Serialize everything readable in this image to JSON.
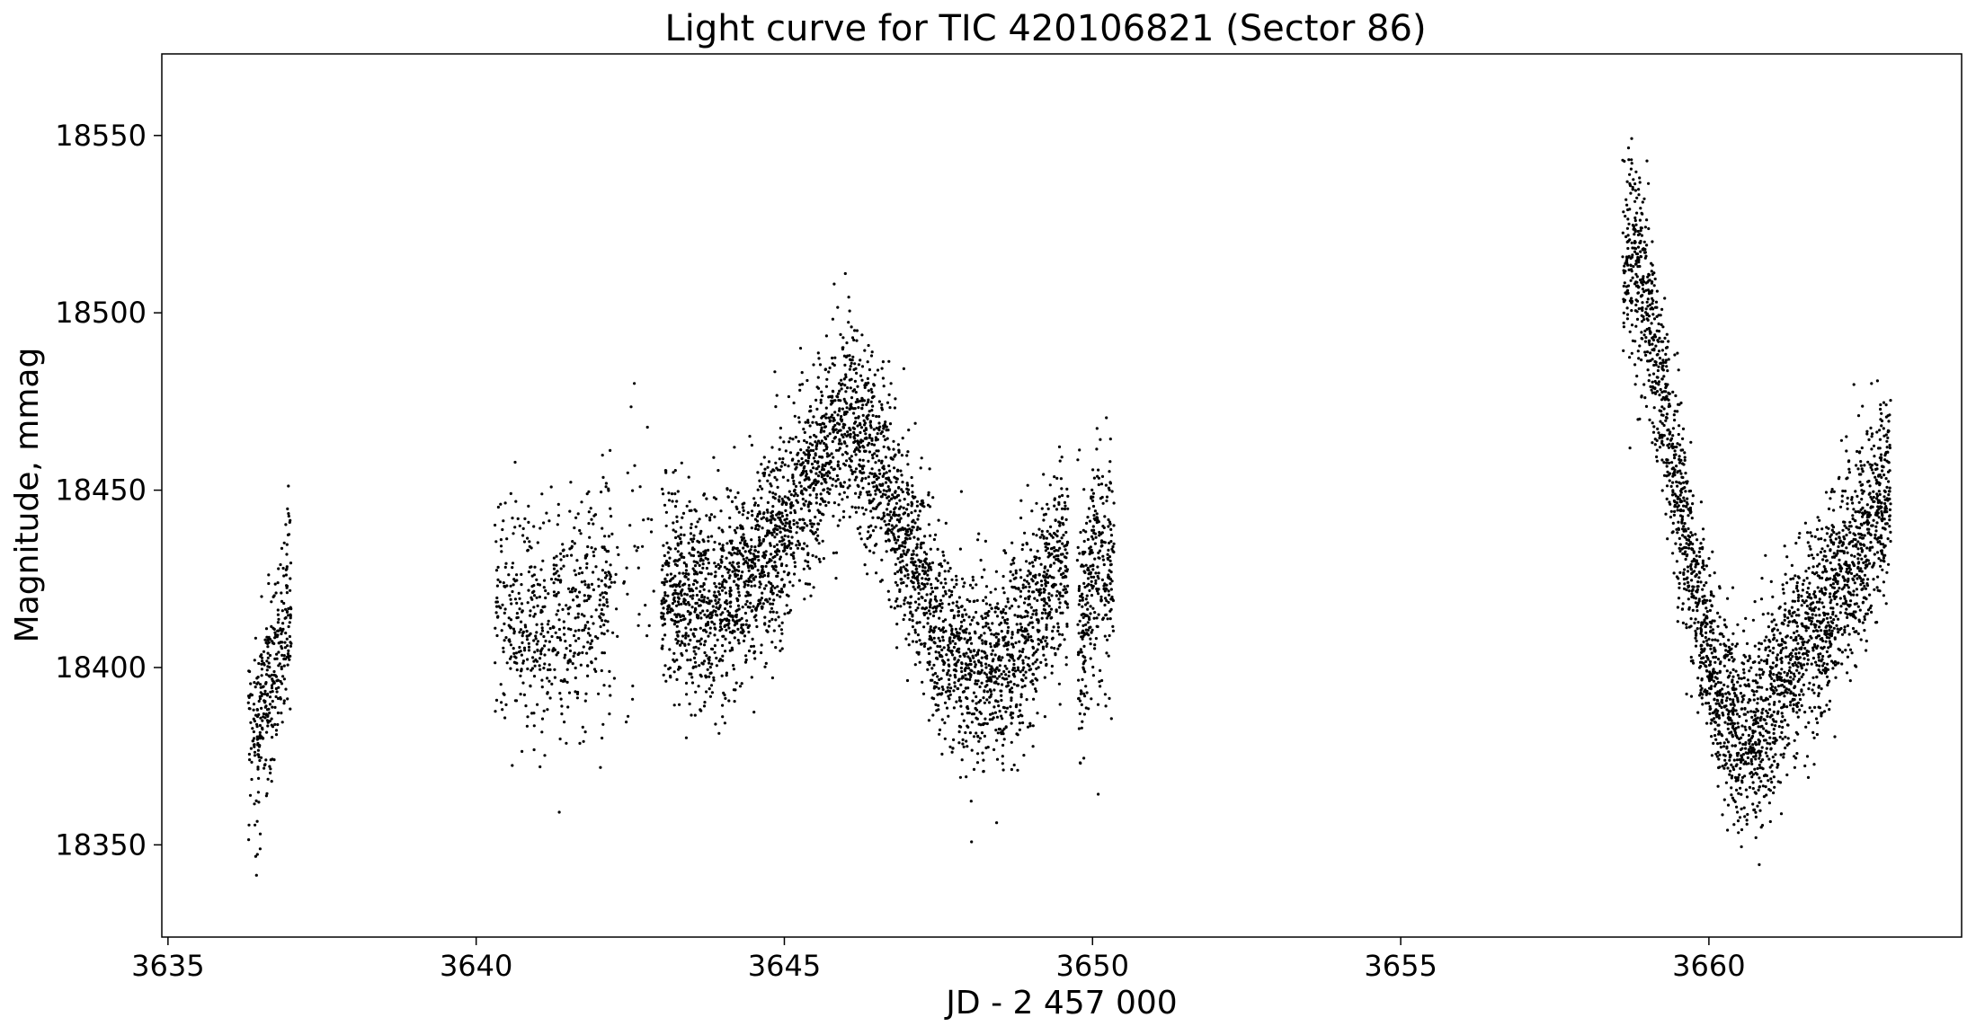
{
  "chart_data": {
    "type": "scatter",
    "title": "Light curve for TIC 420106821 (Sector 86)",
    "xlabel": "JD - 2 457 000",
    "ylabel": "Magnitude, mmag",
    "xlim": [
      3634.9,
      3664.1
    ],
    "ylim": [
      18324,
      18573
    ],
    "y_inverted": false,
    "grid": false,
    "legend": "none",
    "marker_color": "#000000",
    "xticks": [
      "3635",
      "3640",
      "3645",
      "3650",
      "3655",
      "3660"
    ],
    "xtick_values": [
      3635,
      3640,
      3645,
      3650,
      3655,
      3660
    ],
    "yticks": [
      "18350",
      "18400",
      "18450",
      "18500",
      "18550"
    ],
    "ytick_values": [
      18350,
      18400,
      18450,
      18500,
      18550
    ],
    "series": [
      {
        "trend_points": [
          [
            3636.4,
            18380
          ],
          [
            3636.7,
            18395
          ],
          [
            3637.0,
            18420
          ],
          [
            3640.4,
            18418
          ],
          [
            3641.0,
            18410
          ],
          [
            3641.5,
            18415
          ],
          [
            3642.0,
            18420
          ],
          [
            3642.5,
            18425
          ],
          [
            3643.0,
            18424
          ],
          [
            3643.5,
            18420
          ],
          [
            3644.0,
            18418
          ],
          [
            3644.5,
            18428
          ],
          [
            3645.0,
            18440
          ],
          [
            3645.5,
            18455
          ],
          [
            3646.0,
            18470
          ],
          [
            3646.5,
            18458
          ],
          [
            3647.0,
            18435
          ],
          [
            3647.5,
            18410
          ],
          [
            3648.0,
            18400
          ],
          [
            3648.5,
            18398
          ],
          [
            3649.0,
            18412
          ],
          [
            3649.5,
            18432
          ],
          [
            3649.8,
            18410
          ],
          [
            3650.0,
            18425
          ],
          [
            3650.3,
            18430
          ],
          [
            3658.6,
            18515
          ],
          [
            3658.9,
            18510
          ],
          [
            3659.2,
            18480
          ],
          [
            3659.5,
            18450
          ],
          [
            3659.8,
            18420
          ],
          [
            3660.1,
            18395
          ],
          [
            3660.4,
            18385
          ],
          [
            3660.7,
            18378
          ],
          [
            3661.0,
            18390
          ],
          [
            3661.4,
            18402
          ],
          [
            3661.8,
            18412
          ],
          [
            3662.2,
            18425
          ],
          [
            3662.6,
            18440
          ],
          [
            3662.9,
            18450
          ]
        ],
        "segments": [
          {
            "from": 3636.3,
            "to": 3637.0,
            "count": 340,
            "scatter": 13
          },
          {
            "from": 3640.3,
            "to": 3642.2,
            "count": 560,
            "scatter": 15
          },
          {
            "from": 3641.8,
            "to": 3642.9,
            "count": 60,
            "scatter": 20
          },
          {
            "from": 3643.0,
            "to": 3649.6,
            "count": 3600,
            "scatter": 14
          },
          {
            "from": 3649.75,
            "to": 3650.35,
            "count": 330,
            "scatter": 17
          },
          {
            "from": 3658.6,
            "to": 3662.95,
            "count": 2700,
            "scatter": 14
          }
        ]
      }
    ]
  }
}
